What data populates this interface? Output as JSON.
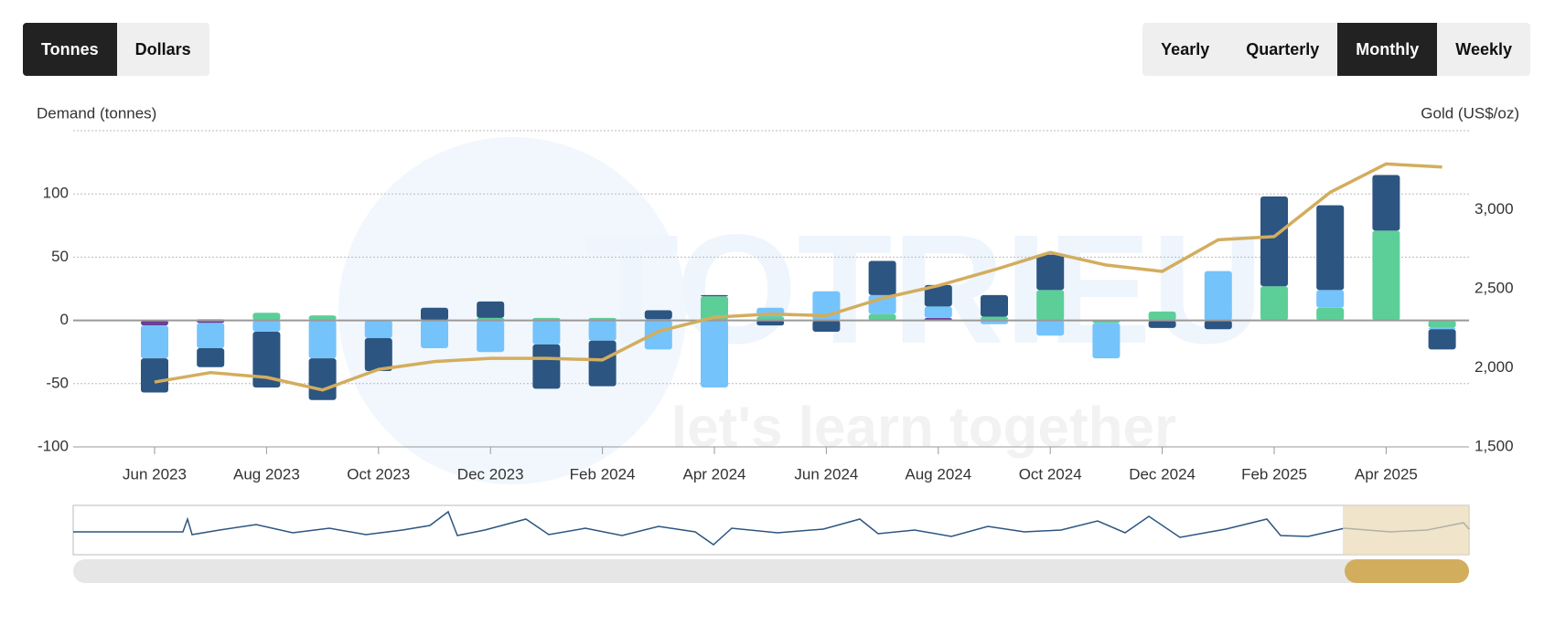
{
  "controls": {
    "units": [
      "Tonnes",
      "Dollars"
    ],
    "periods": [
      "Yearly",
      "Quarterly",
      "Monthly",
      "Weekly"
    ]
  },
  "watermark": {
    "brand": "TOTRIEU",
    "tagline": "let's learn together"
  },
  "chart_data": {
    "type": "bar",
    "y_label": "Demand (tonnes)",
    "y2_label": "Gold (US$/oz)",
    "categories": [
      "Jun 2023",
      null,
      "Aug 2023",
      null,
      "Oct 2023",
      null,
      "Dec 2023",
      null,
      "Feb 2024",
      null,
      "Apr 2024",
      null,
      "Jun 2024",
      null,
      "Aug 2024",
      null,
      "Oct 2024",
      null,
      "Dec 2024",
      null,
      "Feb 2025",
      null,
      "Apr 2025",
      null
    ],
    "ylim": [
      -100,
      150
    ],
    "yticks": [
      -100,
      -50,
      0,
      50,
      100
    ],
    "y2lim": [
      1500,
      3500
    ],
    "y2ticks": [
      {
        "value": 1500,
        "label": "1,500"
      },
      {
        "value": 2000,
        "label": "2,000"
      },
      {
        "value": 2500,
        "label": "2,500"
      },
      {
        "value": 3000,
        "label": "3,000"
      }
    ],
    "grid": true,
    "stacked": true,
    "series": [
      {
        "color": "#6b3f98",
        "values": [
          -4,
          -2,
          0,
          0,
          0,
          0,
          0,
          0,
          0,
          0,
          0,
          0,
          0,
          0,
          2,
          0,
          0,
          0,
          0,
          0,
          0,
          0,
          0,
          0
        ]
      },
      {
        "color": "#5ccf98",
        "values": [
          0,
          1,
          6,
          4,
          0,
          0,
          2,
          2,
          2,
          1,
          19,
          3,
          0,
          5,
          0,
          3,
          24,
          -2,
          7,
          0,
          27,
          10,
          71,
          -6
        ]
      },
      {
        "color": "#75c3fb",
        "values": [
          -26,
          -20,
          -9,
          -30,
          -14,
          -22,
          -25,
          -19,
          -16,
          -23,
          -53,
          7,
          23,
          15,
          9,
          -3,
          -12,
          -28,
          0,
          39,
          0,
          14,
          0,
          -1
        ]
      },
      {
        "color": "#2c5581",
        "values": [
          -27,
          -15,
          -44,
          -33,
          -26,
          10,
          13,
          -35,
          -36,
          7,
          1,
          -4,
          -9,
          27,
          17,
          17,
          28,
          0,
          -6,
          -7,
          71,
          67,
          44,
          -16
        ]
      },
      {
        "type": "line",
        "axis": "y2",
        "color": "#d3ad5e",
        "values": [
          1910,
          1970,
          1940,
          1860,
          1990,
          2040,
          2060,
          2060,
          2050,
          2230,
          2320,
          2340,
          2330,
          2440,
          2520,
          2620,
          2730,
          2650,
          2610,
          2810,
          2830,
          3110,
          3290,
          3270
        ]
      }
    ]
  }
}
